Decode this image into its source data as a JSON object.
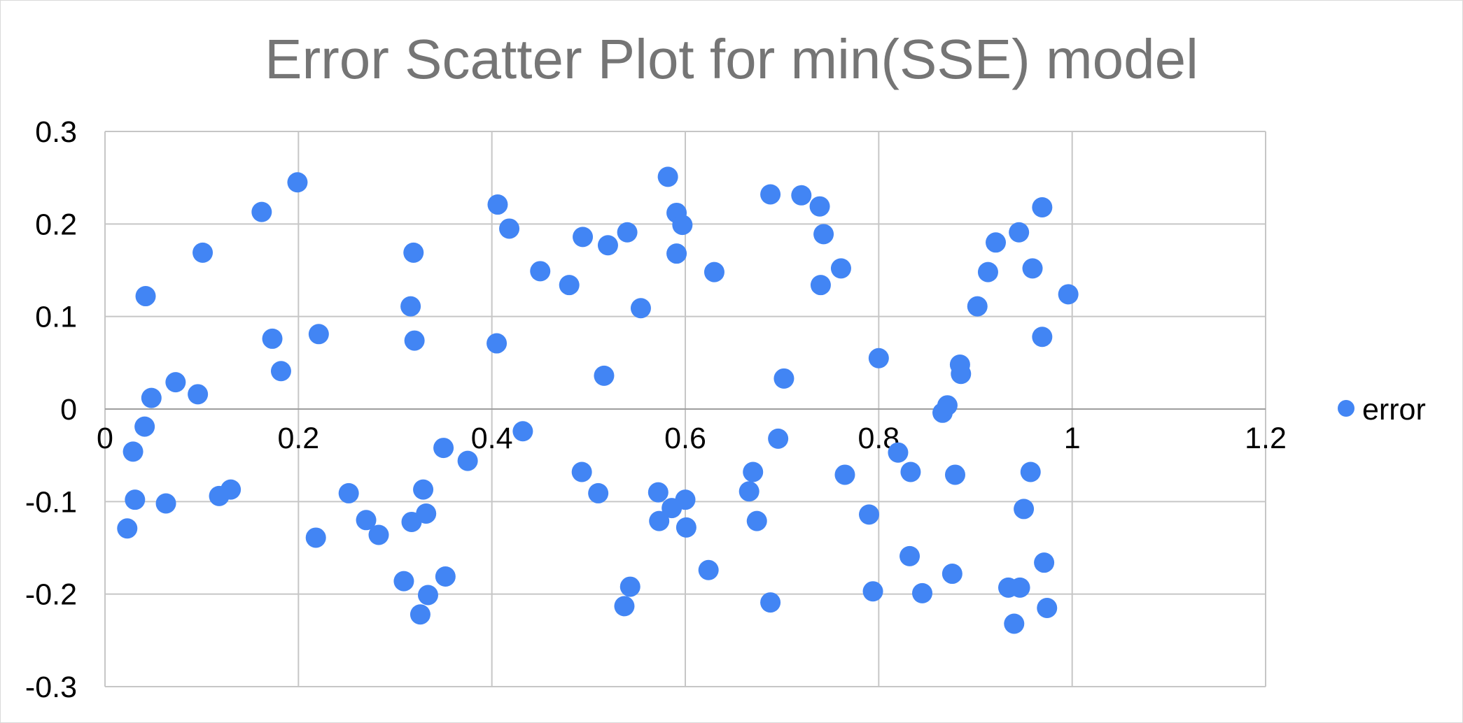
{
  "chart_data": {
    "type": "scatter",
    "title": "Error Scatter Plot for min(SSE) model",
    "xlim": [
      0,
      1.2
    ],
    "ylim": [
      -0.3,
      0.3
    ],
    "x_ticks": [
      "0",
      "0.2",
      "0.4",
      "0.6",
      "0.8",
      "1",
      "1.2"
    ],
    "y_ticks": [
      "0.3",
      "0.2",
      "0.1",
      "0",
      "-0.1",
      "-0.2",
      "-0.3"
    ],
    "grid": true,
    "legend_position": "right",
    "colors": {
      "series": "#4285f4",
      "title": "#757575",
      "grid": "#c6c6c6"
    },
    "series": [
      {
        "name": "error",
        "points": [
          [
            0.023,
            -0.129
          ],
          [
            0.029,
            -0.046
          ],
          [
            0.031,
            -0.098
          ],
          [
            0.041,
            -0.019
          ],
          [
            0.042,
            0.122
          ],
          [
            0.048,
            0.012
          ],
          [
            0.063,
            -0.102
          ],
          [
            0.073,
            0.029
          ],
          [
            0.096,
            0.016
          ],
          [
            0.101,
            0.169
          ],
          [
            0.118,
            -0.094
          ],
          [
            0.13,
            -0.087
          ],
          [
            0.162,
            0.213
          ],
          [
            0.173,
            0.076
          ],
          [
            0.182,
            0.041
          ],
          [
            0.199,
            0.245
          ],
          [
            0.221,
            0.081
          ],
          [
            0.218,
            -0.139
          ],
          [
            0.252,
            -0.091
          ],
          [
            0.27,
            -0.12
          ],
          [
            0.283,
            -0.136
          ],
          [
            0.309,
            -0.186
          ],
          [
            0.316,
            0.111
          ],
          [
            0.319,
            0.169
          ],
          [
            0.32,
            0.074
          ],
          [
            0.317,
            -0.122
          ],
          [
            0.326,
            -0.222
          ],
          [
            0.329,
            -0.087
          ],
          [
            0.332,
            -0.113
          ],
          [
            0.334,
            -0.201
          ],
          [
            0.35,
            -0.042
          ],
          [
            0.352,
            -0.181
          ],
          [
            0.375,
            -0.056
          ],
          [
            0.406,
            0.221
          ],
          [
            0.405,
            0.071
          ],
          [
            0.418,
            0.195
          ],
          [
            0.432,
            -0.024
          ],
          [
            0.45,
            0.149
          ],
          [
            0.48,
            0.134
          ],
          [
            0.494,
            0.186
          ],
          [
            0.493,
            -0.068
          ],
          [
            0.51,
            -0.091
          ],
          [
            0.516,
            0.036
          ],
          [
            0.52,
            0.177
          ],
          [
            0.54,
            0.191
          ],
          [
            0.537,
            -0.213
          ],
          [
            0.543,
            -0.192
          ],
          [
            0.554,
            0.109
          ],
          [
            0.572,
            -0.09
          ],
          [
            0.573,
            -0.121
          ],
          [
            0.582,
            0.251
          ],
          [
            0.586,
            -0.107
          ],
          [
            0.591,
            0.212
          ],
          [
            0.591,
            0.168
          ],
          [
            0.597,
            0.199
          ],
          [
            0.6,
            -0.098
          ],
          [
            0.601,
            -0.128
          ],
          [
            0.624,
            -0.174
          ],
          [
            0.63,
            0.148
          ],
          [
            0.666,
            -0.089
          ],
          [
            0.67,
            -0.068
          ],
          [
            0.674,
            -0.121
          ],
          [
            0.688,
            0.232
          ],
          [
            0.688,
            -0.209
          ],
          [
            0.696,
            -0.032
          ],
          [
            0.702,
            0.033
          ],
          [
            0.72,
            0.231
          ],
          [
            0.739,
            0.219
          ],
          [
            0.74,
            0.134
          ],
          [
            0.743,
            0.189
          ],
          [
            0.761,
            0.152
          ],
          [
            0.765,
            -0.071
          ],
          [
            0.79,
            -0.114
          ],
          [
            0.794,
            -0.197
          ],
          [
            0.8,
            0.055
          ],
          [
            0.82,
            -0.047
          ],
          [
            0.832,
            -0.159
          ],
          [
            0.833,
            -0.068
          ],
          [
            0.845,
            -0.199
          ],
          [
            0.866,
            -0.004
          ],
          [
            0.871,
            0.004
          ],
          [
            0.876,
            -0.178
          ],
          [
            0.879,
            -0.071
          ],
          [
            0.884,
            0.048
          ],
          [
            0.885,
            0.038
          ],
          [
            0.902,
            0.111
          ],
          [
            0.913,
            0.148
          ],
          [
            0.921,
            0.18
          ],
          [
            0.934,
            -0.193
          ],
          [
            0.94,
            -0.232
          ],
          [
            0.945,
            0.191
          ],
          [
            0.946,
            -0.193
          ],
          [
            0.95,
            -0.108
          ],
          [
            0.957,
            -0.068
          ],
          [
            0.959,
            0.152
          ],
          [
            0.969,
            0.218
          ],
          [
            0.969,
            0.078
          ],
          [
            0.971,
            -0.166
          ],
          [
            0.974,
            -0.215
          ],
          [
            0.996,
            0.124
          ]
        ]
      }
    ]
  }
}
